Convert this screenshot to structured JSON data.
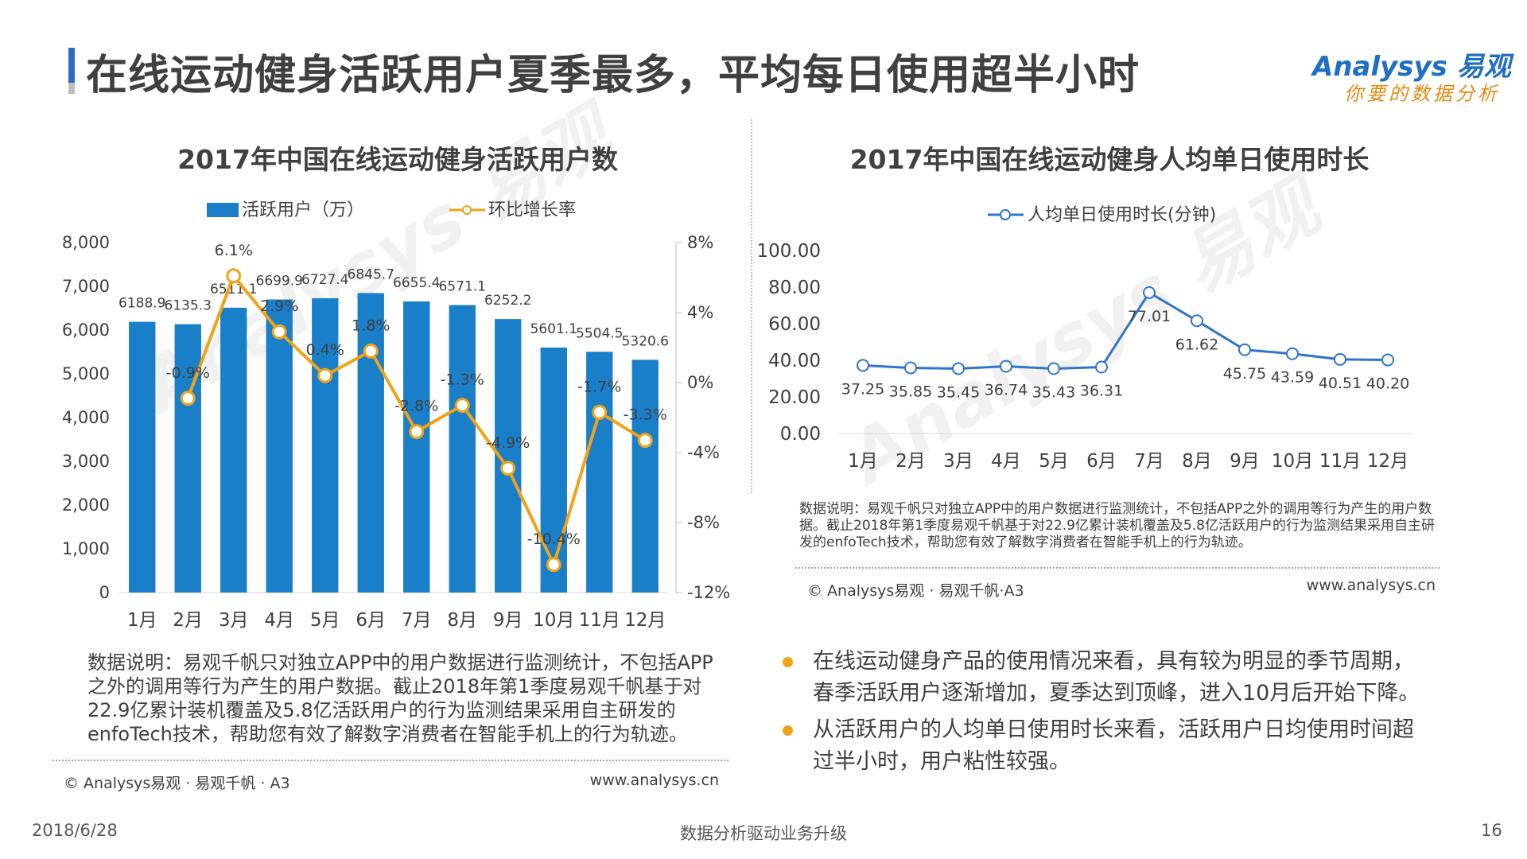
{
  "header": {
    "title": "在线运动健身活跃用户夏季最多，平均每日使用超半小时",
    "logo_main": "Analysys 易观",
    "logo_sub": "你要的数据分析"
  },
  "chart_data": [
    {
      "type": "bar",
      "title": "2017年中国在线运动健身活跃用户数",
      "categories": [
        "1月",
        "2月",
        "3月",
        "4月",
        "5月",
        "6月",
        "7月",
        "8月",
        "9月",
        "10月",
        "11月",
        "12月"
      ],
      "series": [
        {
          "name": "活跃用户（万）",
          "type": "bar",
          "axis": "left",
          "values": [
            6188.9,
            6135.3,
            6511.1,
            6699.9,
            6727.4,
            6845.7,
            6655.4,
            6571.1,
            6252.2,
            5601.1,
            5504.5,
            5320.6
          ],
          "labels": [
            "6188.9",
            "6135.3",
            "6511.1",
            "6699.9",
            "6727.4",
            "6845.7",
            "6655.4",
            "6571.1",
            "6252.2",
            "5601.1",
            "5504.5",
            "5320.6"
          ]
        },
        {
          "name": "环比增长率",
          "type": "line",
          "axis": "right",
          "values": [
            null,
            -0.9,
            6.1,
            2.9,
            0.4,
            1.8,
            -2.8,
            -1.3,
            -4.9,
            -10.4,
            -1.7,
            -3.3
          ],
          "labels": [
            "",
            "-0.9%",
            "6.1%",
            "2.9%",
            "0.4%",
            "1.8%",
            "-2.8%",
            "-1.3%",
            "-4.9%",
            "-10.4%",
            "-1.7%",
            "-3.3%"
          ]
        }
      ],
      "y_left": {
        "min": 0,
        "max": 8000,
        "ticks": [
          "8,000",
          "7,000",
          "6,000",
          "5,000",
          "4,000",
          "3,000",
          "2,000",
          "1,000",
          "0"
        ]
      },
      "y_right": {
        "min": -12,
        "max": 8,
        "ticks": [
          "8%",
          "4%",
          "0%",
          "-4%",
          "-8%",
          "-12%"
        ]
      },
      "legend": "top",
      "colors": {
        "bar": "#1a7fc9",
        "line": "#f0a316"
      }
    },
    {
      "type": "line",
      "title": "2017年中国在线运动健身人均单日使用时长",
      "categories": [
        "1月",
        "2月",
        "3月",
        "4月",
        "5月",
        "6月",
        "7月",
        "8月",
        "9月",
        "10月",
        "11月",
        "12月"
      ],
      "series": [
        {
          "name": "人均单日使用时长(分钟)",
          "values": [
            37.25,
            35.85,
            35.45,
            36.74,
            35.43,
            36.31,
            77.01,
            61.62,
            45.75,
            43.59,
            40.51,
            40.2
          ],
          "labels": [
            "37.25",
            "35.85",
            "35.45",
            "36.74",
            "35.43",
            "36.31",
            "77.01",
            "61.62",
            "45.75",
            "43.59",
            "40.51",
            "40.20"
          ]
        }
      ],
      "y": {
        "min": 0,
        "max": 100,
        "ticks": [
          "100.00",
          "80.00",
          "60.00",
          "40.00",
          "20.00",
          "0.00"
        ]
      },
      "legend": "top",
      "colors": {
        "line": "#2e75cf"
      }
    }
  ],
  "left_panel": {
    "note": "数据说明：易观千帆只对独立APP中的用户数据进行监测统计，不包括APP之外的调用等行为产生的用户数据。截止2018年第1季度易观千帆基于对22.9亿累计装机覆盖及5.8亿活跃用户的行为监测结果采用自主研发的enfoTech技术，帮助您有效了解数字消费者在智能手机上的行为轨迹。",
    "copyright": "© Analysys易观 · 易观千帆 · A3",
    "website": "www.analysys.cn"
  },
  "right_panel": {
    "note": "数据说明：易观千帆只对独立APP中的用户数据进行监测统计，不包括APP之外的调用等行为产生的用户数据。截止2018年第1季度易观千帆基于对22.9亿累计装机覆盖及5.8亿活跃用户的行为监测结果采用自主研发的enfoTech技术，帮助您有效了解数字消费者在智能手机上的行为轨迹。",
    "copyright": "© Analysys易观 · 易观千帆·A3",
    "website": "www.analysys.cn"
  },
  "bullets": [
    "在线运动健身产品的使用情况来看，具有较为明显的季节周期，春季活跃用户逐渐增加，夏季达到顶峰，进入10月后开始下降。",
    "从活跃用户的人均单日使用时长来看，活跃用户日均使用时间超过半小时，用户粘性较强。"
  ],
  "footer": {
    "date": "2018/6/28",
    "center": "数据分析驱动业务升级",
    "page": "16"
  }
}
